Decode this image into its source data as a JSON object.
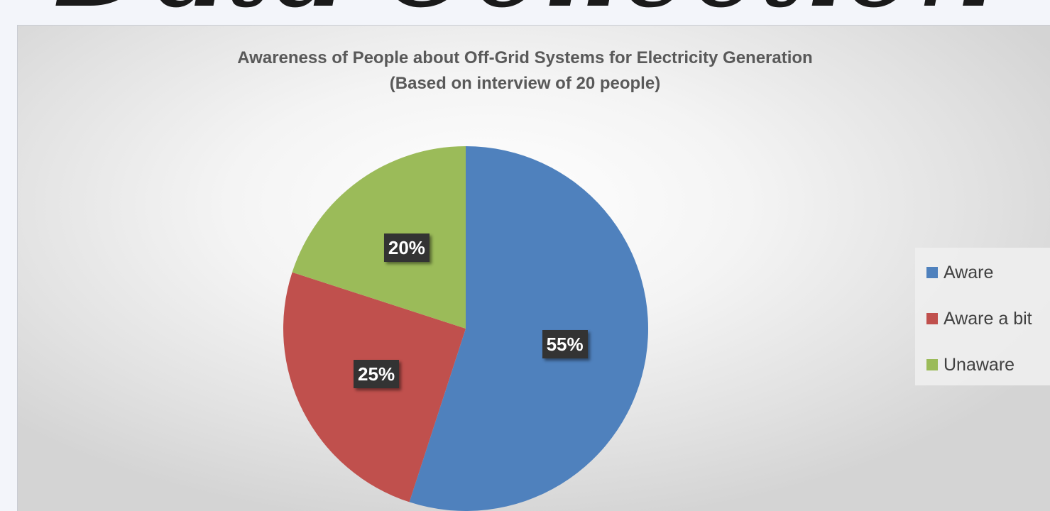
{
  "slide": {
    "title": "Data Collection"
  },
  "chart_data": {
    "type": "pie",
    "title": "Awareness of People about Off-Grid Systems for Electricity Generation",
    "subtitle": "(Based on interview of 20 people)",
    "categories": [
      "Aware",
      "Aware a bit",
      "Unaware"
    ],
    "values": [
      55,
      25,
      20
    ],
    "labels": [
      "55%",
      "25%",
      "20%"
    ],
    "colors": [
      "#4f81bd",
      "#c0504d",
      "#9bbb59"
    ],
    "legend": "right"
  }
}
